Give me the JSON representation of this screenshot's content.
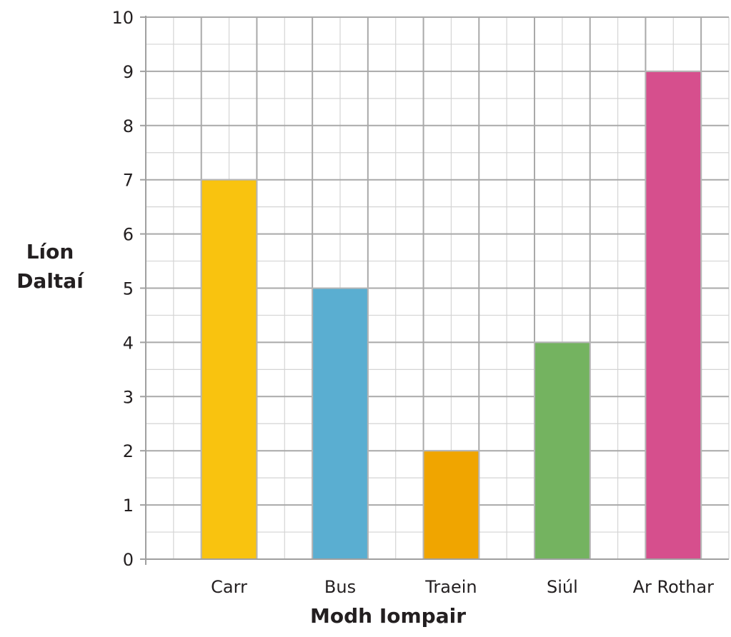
{
  "chart_data": {
    "type": "bar",
    "categories": [
      "Carr",
      "Bus",
      "Traein",
      "Siúl",
      "Ar Rothar"
    ],
    "values": [
      7,
      5,
      2,
      4,
      9
    ],
    "colors": [
      "#f9c30f",
      "#5aaed1",
      "#f0a500",
      "#74b360",
      "#d64f8d"
    ],
    "xlabel": "Modh Iompair",
    "ylabel_lines": [
      "Líon",
      "Daltaí"
    ],
    "ylim": [
      0,
      10
    ],
    "yticks": [
      0,
      1,
      2,
      3,
      4,
      5,
      6,
      7,
      8,
      9,
      10
    ],
    "grid": true,
    "minor_grid": true
  }
}
